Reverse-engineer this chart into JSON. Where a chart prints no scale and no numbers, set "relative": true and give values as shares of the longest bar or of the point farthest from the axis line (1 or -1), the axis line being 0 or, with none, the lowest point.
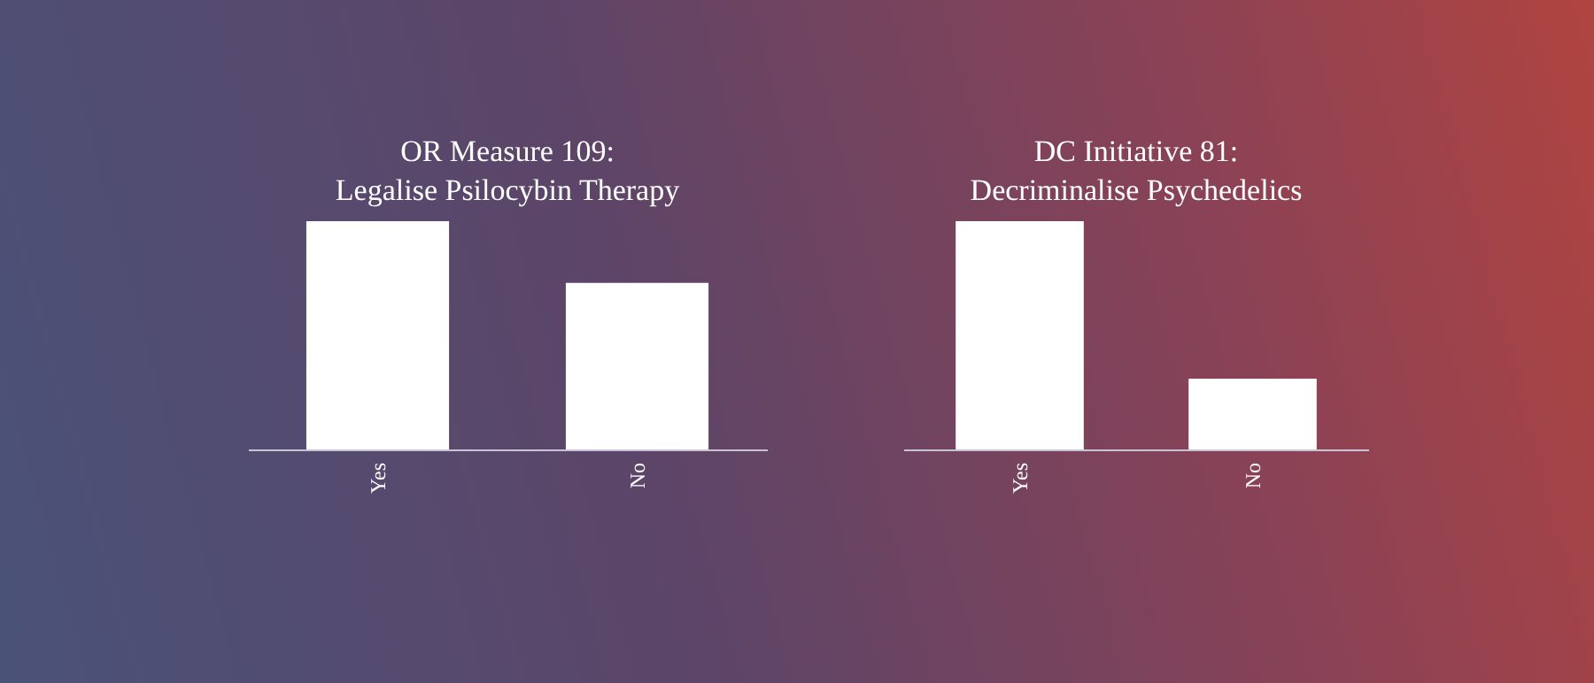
{
  "chart_data": [
    {
      "type": "bar",
      "title": "OR Measure 109:\nLegalise Psilocybin Therapy",
      "categories": [
        "Yes",
        "No"
      ],
      "values": [
        1,
        0.73
      ],
      "color": "#ffffff",
      "relative": true
    },
    {
      "type": "bar",
      "title": "DC Initiative 81:\nDecriminalise Psychedelics",
      "categories": [
        "Yes",
        "No"
      ],
      "values": [
        1,
        0.31
      ],
      "color": "#ffffff",
      "relative": true
    }
  ]
}
